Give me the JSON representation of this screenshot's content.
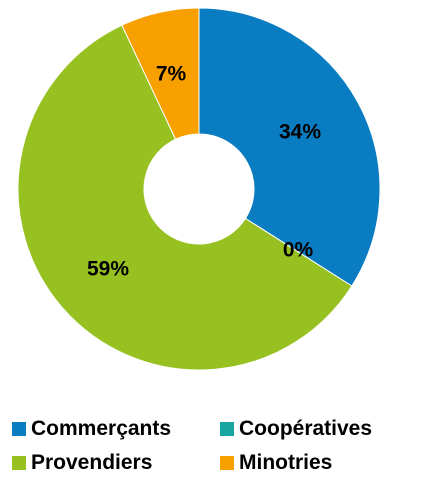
{
  "chart_data": {
    "type": "pie",
    "donut": true,
    "slices": [
      {
        "name": "Commerçants",
        "value": 34,
        "label": "34%",
        "color": "#0a7cc1"
      },
      {
        "name": "Coopératives",
        "value": 0,
        "label": "0%",
        "color": "#1aa6a0"
      },
      {
        "name": "Provendiers",
        "value": 59,
        "label": "59%",
        "color": "#96c120"
      },
      {
        "name": "Minotries",
        "value": 7,
        "label": "7%",
        "color": "#f7a000"
      }
    ],
    "legend_placement": "bottom",
    "legend": [
      {
        "label": "Commerçants",
        "color": "#0a7cc1"
      },
      {
        "label": "Coopératives",
        "color": "#1aa6a0"
      },
      {
        "label": "Provendiers",
        "color": "#96c120"
      },
      {
        "label": "Minotries",
        "color": "#f7a000"
      }
    ]
  }
}
